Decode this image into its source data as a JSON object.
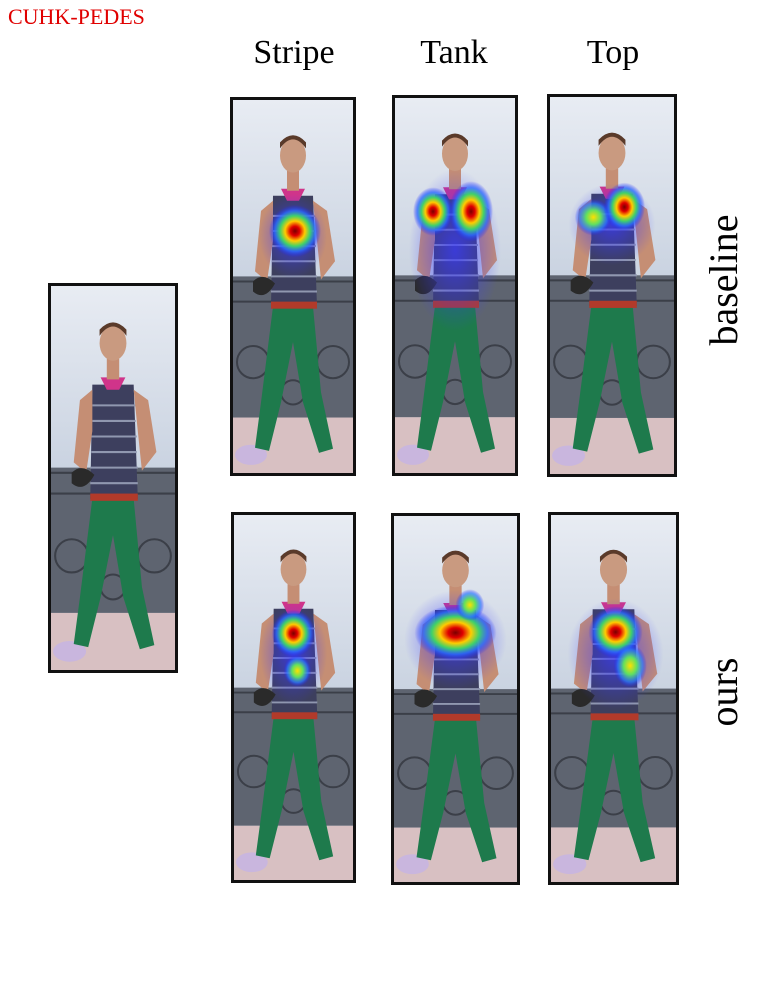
{
  "dataset_label": "CUHK-PEDES",
  "accent_color": "#e00000",
  "columns": [
    "Stripe",
    "Tank",
    "Top"
  ],
  "rows": [
    "baseline",
    "ours"
  ]
}
